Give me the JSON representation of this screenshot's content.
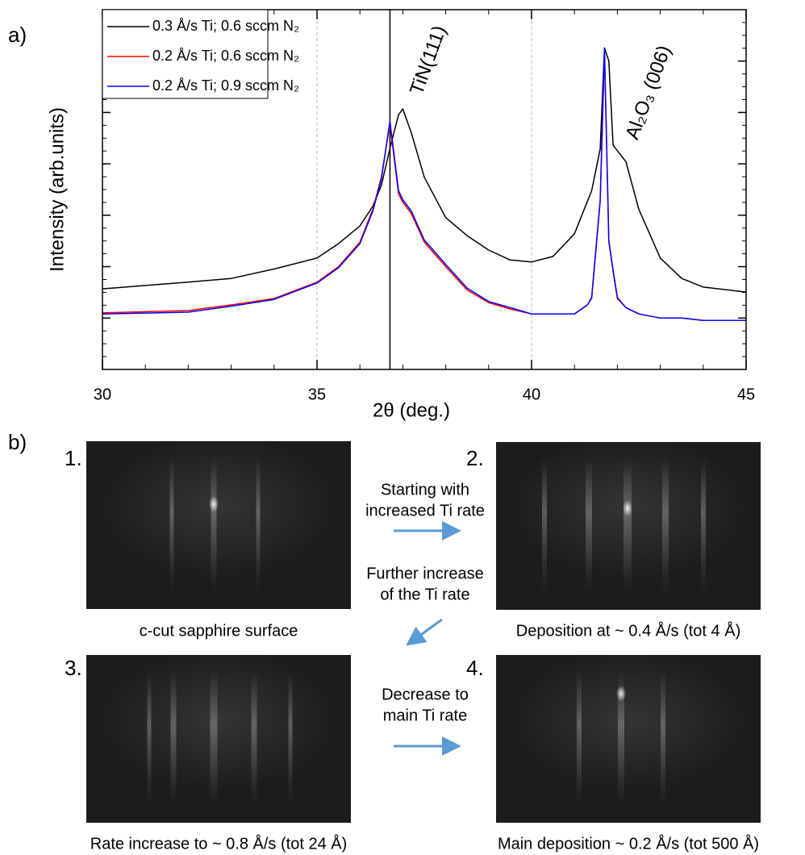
{
  "chart_data": {
    "type": "line",
    "panel_label": "a)",
    "xlabel": "2θ (deg.)",
    "ylabel": "Intensity (arb.units)",
    "log_y": true,
    "grid": true,
    "reference_line_x": 36.7,
    "annotations": [
      "TiN(111)",
      "Al₂O₃ (006)"
    ],
    "x": [
      30,
      32,
      33,
      34,
      35,
      35.5,
      36,
      36.3,
      36.5,
      36.7,
      36.9,
      37,
      37.2,
      37.5,
      38,
      38.5,
      39,
      39.5,
      40,
      40.5,
      41,
      41.3,
      41.4,
      41.6,
      41.7,
      41.8,
      41.9,
      42,
      42.2,
      42.5,
      43,
      43.5,
      44,
      45
    ],
    "series": [
      {
        "name": "0.3 Å/s Ti; 0.6 sccm N₂",
        "color": "#000000",
        "values": [
          37,
          50,
          59,
          90,
          147,
          280,
          620,
          1500,
          3800,
          20000,
          90000,
          117000,
          40000,
          5500,
          900,
          400,
          210,
          135,
          123,
          158,
          436,
          1860,
          3000,
          19500,
          1800000,
          1000000,
          23000,
          18000,
          11000,
          1300,
          147,
          59,
          40,
          32
        ]
      },
      {
        "name": "0.2 Å/s Ti; 0.6 sccm N₂",
        "color": "#ff0000",
        "values": [
          12.6,
          14,
          18,
          24,
          50,
          100,
          300,
          1300,
          5500,
          60000,
          2600,
          1800,
          1070,
          300,
          100,
          35,
          20,
          15,
          12,
          12,
          12,
          18,
          24,
          1860,
          1500000,
          300,
          80,
          24,
          16,
          12,
          10,
          10,
          9,
          9
        ]
      },
      {
        "name": "0.2 Å/s Ti; 0.9 sccm N₂",
        "color": "#0000ff",
        "values": [
          12,
          13,
          17,
          23,
          48,
          95,
          280,
          1200,
          5000,
          68000,
          3000,
          2000,
          1200,
          330,
          110,
          38,
          21,
          16,
          12,
          12,
          12,
          18,
          25,
          2000,
          1700000,
          320,
          85,
          25,
          16,
          12,
          10,
          10,
          9,
          9
        ]
      }
    ],
    "xlim": [
      30,
      45
    ],
    "xticks": [
      30,
      35,
      40,
      45
    ],
    "ylim": [
      1,
      10000000
    ],
    "yticks": [
      10,
      100,
      1000,
      10000,
      100000,
      1000000
    ]
  },
  "panel_b": {
    "label": "b)",
    "images": [
      {
        "number": "1.",
        "caption": "c-cut sapphire surface"
      },
      {
        "number": "2.",
        "caption": "Deposition at ~ 0.4 Å/s (tot 4 Å)"
      },
      {
        "number": "3.",
        "caption": "Rate increase to ~ 0.8 Å/s (tot 24 Å)"
      },
      {
        "number": "4.",
        "caption": "Main deposition ~ 0.2 Å/s (tot 500 Å)"
      }
    ],
    "steps": [
      [
        "Starting with",
        "increased Ti rate"
      ],
      [
        "Further increase",
        "of the Ti rate"
      ],
      [
        "Decrease to",
        "main Ti rate"
      ]
    ]
  }
}
